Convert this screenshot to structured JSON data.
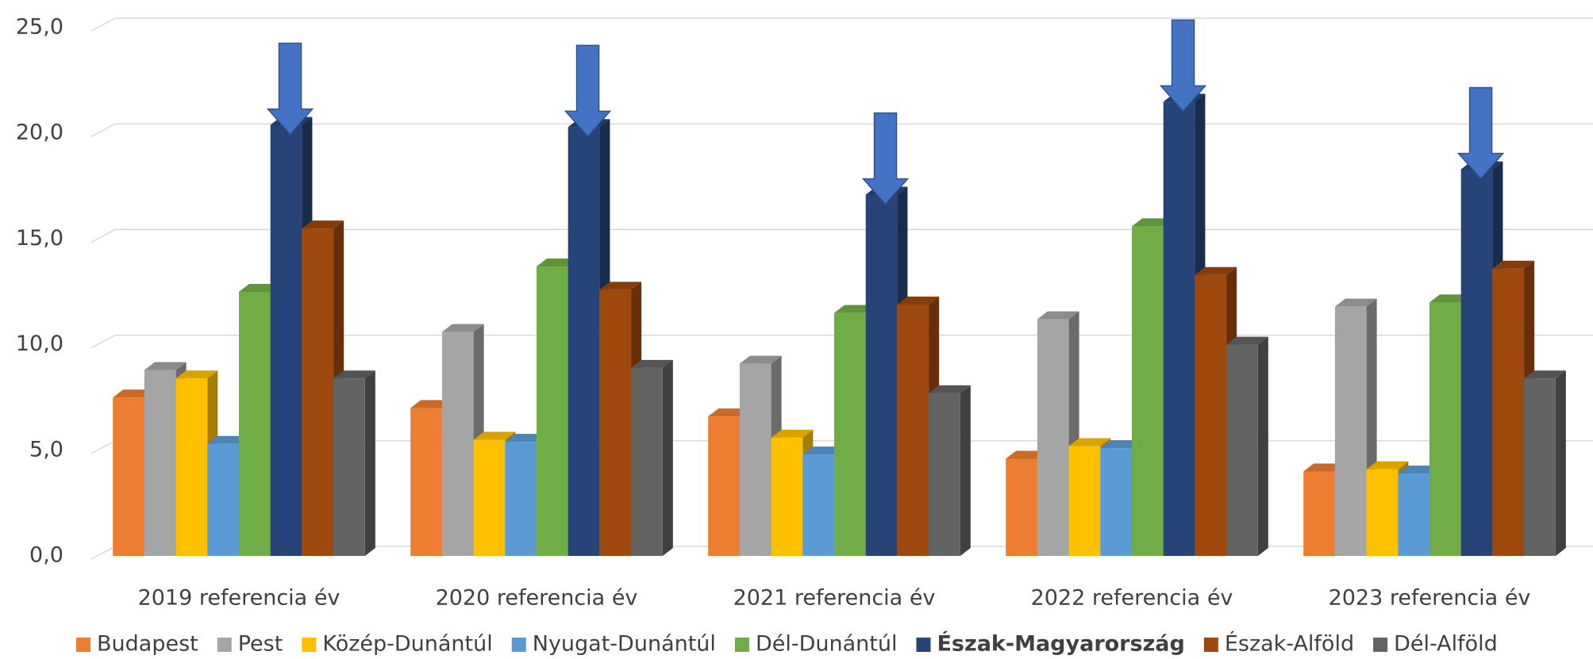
{
  "chart_data": {
    "type": "bar3d",
    "categories": [
      "2019 referencia év",
      "2020 referencia év",
      "2021 referencia év",
      "2022 referencia év",
      "2023 referencia év"
    ],
    "series": [
      {
        "name": "Budapest",
        "color": "#ED7D31",
        "values": [
          7.5,
          7.0,
          6.6,
          4.6,
          4.0
        ]
      },
      {
        "name": "Pest",
        "color": "#A5A5A5",
        "values": [
          8.8,
          10.6,
          9.1,
          11.2,
          11.8
        ]
      },
      {
        "name": "Közép-Dunántúl",
        "color": "#FFC000",
        "values": [
          8.4,
          5.5,
          5.6,
          5.2,
          4.1
        ]
      },
      {
        "name": "Nyugat-Dunántúl",
        "color": "#5B9BD5",
        "values": [
          5.3,
          5.4,
          4.8,
          5.1,
          3.9
        ]
      },
      {
        "name": "Dél-Dunántúl",
        "color": "#70AD47",
        "values": [
          12.5,
          13.7,
          11.5,
          15.6,
          12.0
        ]
      },
      {
        "name": "Észak-Magyarország",
        "color": "#264478",
        "values": [
          20.4,
          20.3,
          17.1,
          21.5,
          18.3
        ]
      },
      {
        "name": "Észak-Alföld",
        "color": "#9E480E",
        "values": [
          15.5,
          12.6,
          11.9,
          13.3,
          13.6
        ]
      },
      {
        "name": "Dél-Alföld",
        "color": "#636363",
        "values": [
          8.4,
          8.9,
          7.7,
          10.0,
          8.4
        ]
      }
    ],
    "highlight_series_index": 5,
    "ylim": [
      0,
      25
    ],
    "yticks": [
      {
        "value": 0,
        "label": "0,0"
      },
      {
        "value": 5,
        "label": "5,0"
      },
      {
        "value": 10,
        "label": "10,0"
      },
      {
        "value": 15,
        "label": "15,0"
      },
      {
        "value": 20,
        "label": "20,0"
      },
      {
        "value": 25,
        "label": "25,0"
      }
    ],
    "grid": true,
    "legend": "bottom"
  }
}
